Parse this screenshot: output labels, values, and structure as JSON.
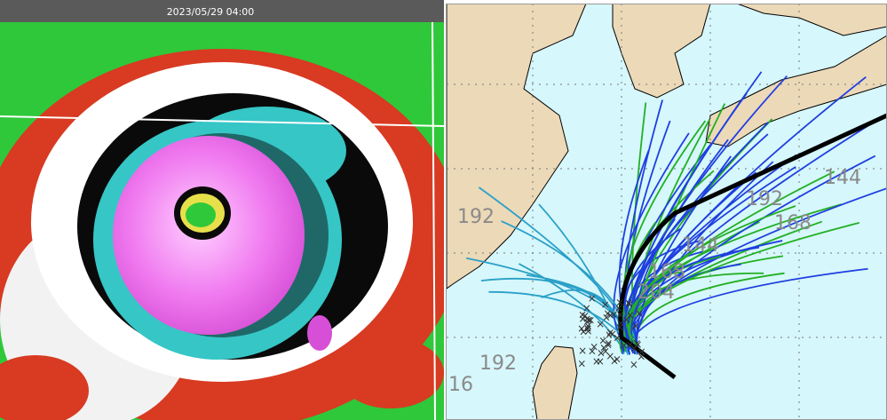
{
  "header": {
    "timestamp": "2023/05/29 04:00"
  },
  "map": {
    "track_labels": [
      "192",
      "192",
      "16",
      "144",
      "168",
      "192",
      "144",
      "168",
      "204"
    ]
  }
}
